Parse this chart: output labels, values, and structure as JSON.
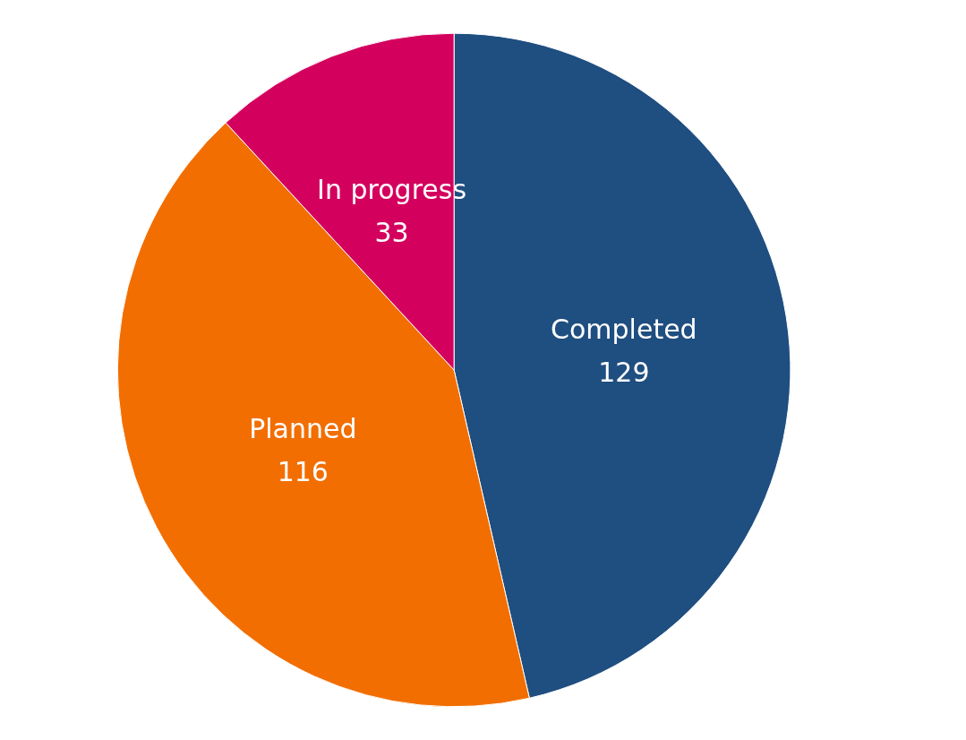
{
  "chart_data": {
    "type": "pie",
    "categories": [
      "Completed",
      "Planned",
      "In progress"
    ],
    "values": [
      129,
      116,
      33
    ],
    "colors": [
      "#1f4e80",
      "#f26e00",
      "#d4005e"
    ],
    "data_labels": true,
    "legend": false
  }
}
